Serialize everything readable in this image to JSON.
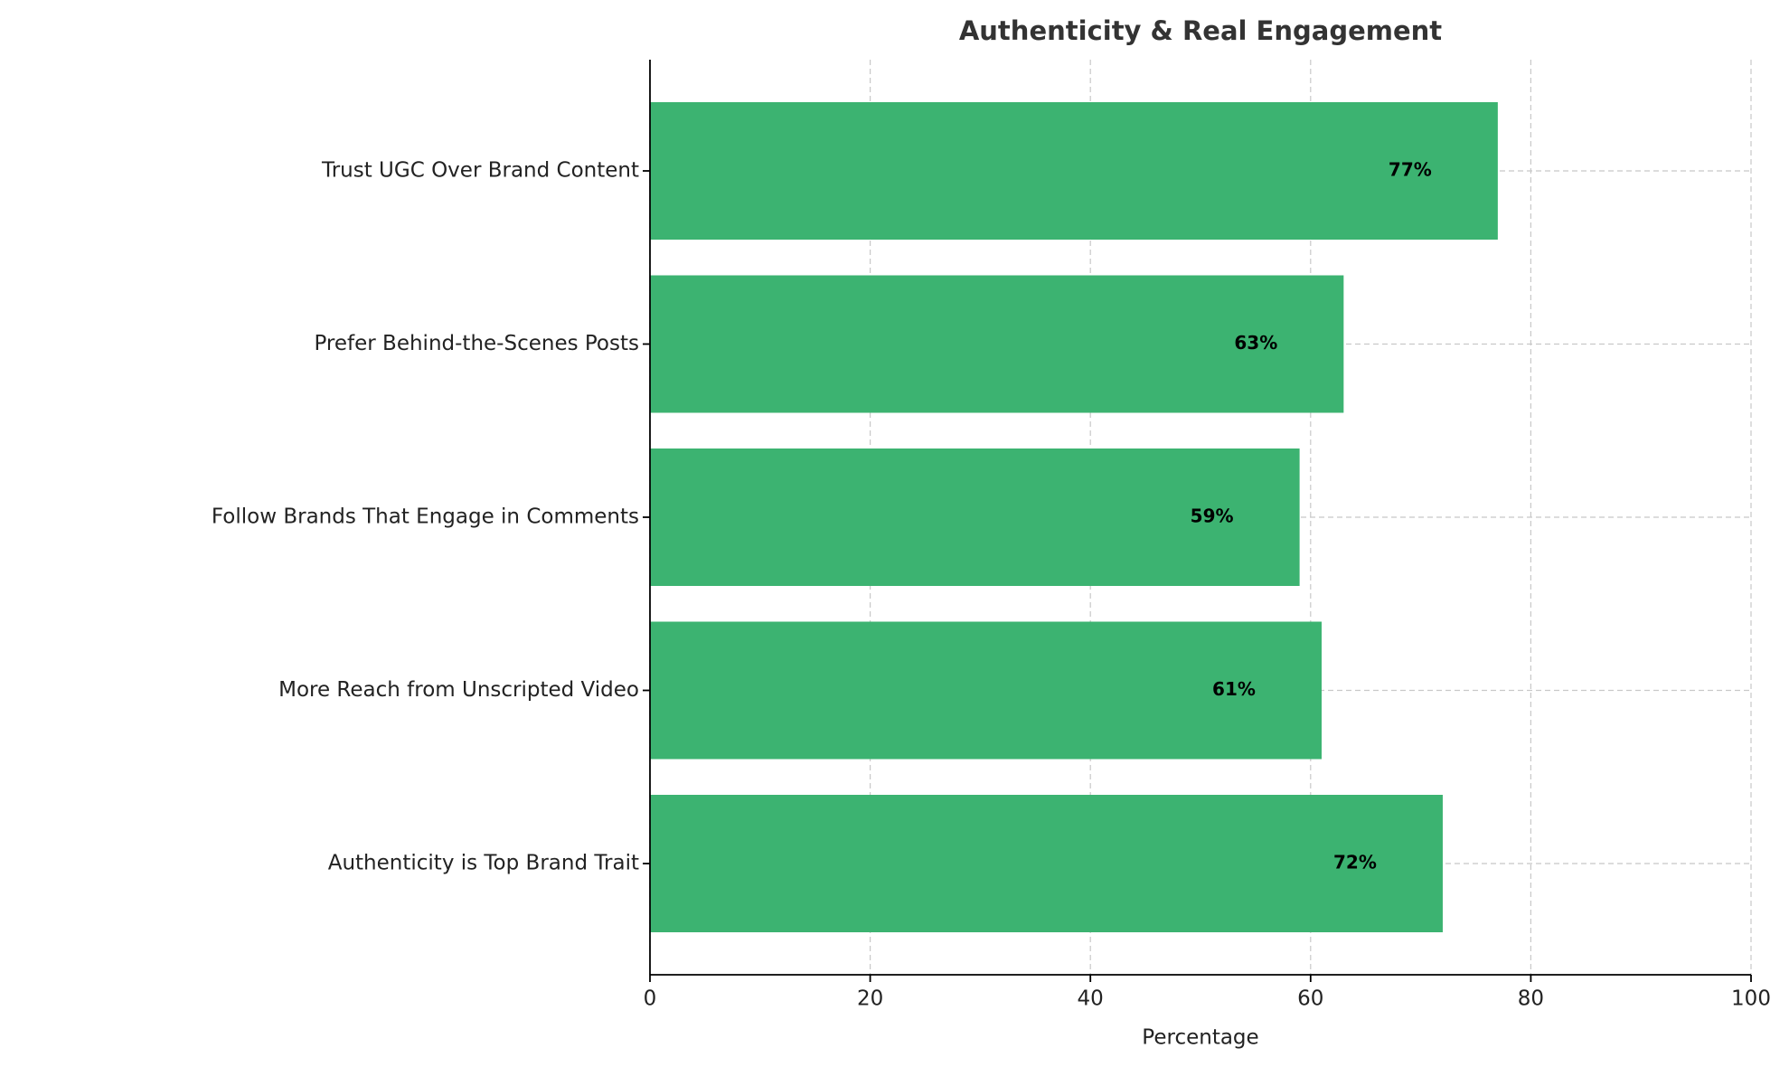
{
  "chart_data": {
    "type": "barh",
    "title": "Authenticity & Real Engagement",
    "xlabel": "Percentage",
    "categories": [
      "Authenticity is Top Brand Trait",
      "More Reach from Unscripted Video",
      "Follow Brands That Engage in Comments",
      "Prefer Behind-the-Scenes Posts",
      "Trust UGC Over Brand Content"
    ],
    "values": [
      72,
      61,
      59,
      63,
      77
    ],
    "value_labels": [
      "72%",
      "61%",
      "59%",
      "63%",
      "77%"
    ],
    "color": "#3cb371",
    "xlim": [
      0,
      100
    ],
    "xticks": [
      0,
      20,
      40,
      60,
      80,
      100
    ],
    "grid": true
  }
}
